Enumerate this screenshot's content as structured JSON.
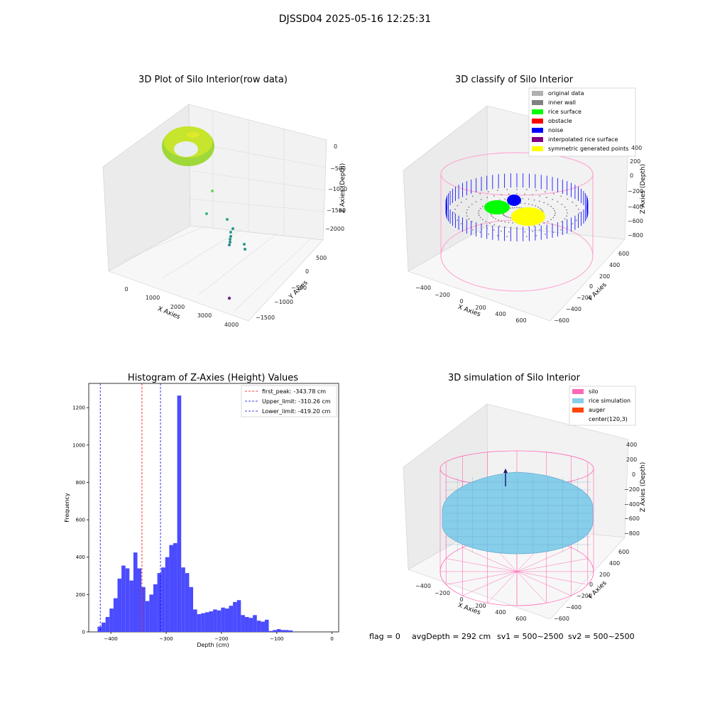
{
  "suptitle": "DJSSD04 2025-05-16 12:25:31",
  "footer": {
    "flag": "flag = 0",
    "avgDepth": "avgDepth = 292 cm",
    "sv1": "sv1 = 500~2500",
    "sv2": "sv2 = 500~2500"
  },
  "colors": {
    "silo": "#ff69b4",
    "rice_simulation": "#87ceeb",
    "auger": "#ff4500",
    "rice_surface": "#00ff00",
    "noise": "#0000ff",
    "original": "#b0b0b0",
    "inner_wall": "#808080",
    "obstacle": "#ff0000",
    "interpolated": "#800080",
    "symmetric": "#ffff00",
    "hist_bar": "#4b4bff"
  },
  "chart_data": [
    {
      "type": "scatter",
      "title": "3D Plot of Silo Interior(row data)",
      "xlabel": "X Axies",
      "ylabel": "Y Axies",
      "zlabel": "Z Axies (Depth)",
      "xticks": [
        "0",
        "1000",
        "2000",
        "3000",
        "4000"
      ],
      "yticks": [
        "500",
        "0",
        "−500",
        "−1000",
        "−1500"
      ],
      "zticks": [
        "0",
        "−500",
        "−1000",
        "−1500",
        "−2000"
      ]
    },
    {
      "type": "scatter",
      "title": "3D classify of Silo Interior",
      "xlabel": "X Axies",
      "ylabel": "Y Axies",
      "zlabel": "Z Axies (Depth)",
      "xticks": [
        "−400",
        "−200",
        "0",
        "200",
        "400",
        "600"
      ],
      "yticks": [
        "600",
        "400",
        "200",
        "0",
        "−200",
        "−400",
        "−600"
      ],
      "zticks": [
        "400",
        "200",
        "0",
        "−200",
        "−400",
        "−600",
        "−800"
      ],
      "legend": [
        "original data",
        "inner wall",
        "rice surface",
        "obstacle",
        "noise",
        "interpolated rice surface",
        "symmetric generated points"
      ],
      "legend_position": "top-right"
    },
    {
      "type": "bar",
      "title": "Histogram of Z-Axies (Height) Values",
      "xlabel": "Depth (cm)",
      "ylabel": "Frequency",
      "xlim": [
        -440,
        12
      ],
      "ylim": [
        0,
        1330
      ],
      "xticks": [
        -400,
        -300,
        -200,
        -100,
        0
      ],
      "xtick_labels": [
        "−400",
        "−300",
        "−200",
        "−100",
        "0"
      ],
      "yticks": [
        0,
        200,
        400,
        600,
        800,
        1000,
        1200
      ],
      "bin_start": -424,
      "bin_width": 7.2,
      "values": [
        28,
        50,
        80,
        125,
        180,
        285,
        355,
        340,
        275,
        425,
        340,
        240,
        165,
        200,
        255,
        315,
        345,
        400,
        465,
        475,
        1265,
        345,
        315,
        240,
        120,
        95,
        100,
        105,
        110,
        120,
        115,
        130,
        125,
        140,
        160,
        170,
        90,
        80,
        75,
        90,
        60,
        55,
        65,
        5,
        10,
        15,
        10,
        10,
        8
      ],
      "vlines": [
        {
          "label": "first_peak: -343.78 cm",
          "x": -343.78,
          "color": "#ff0000"
        },
        {
          "label": "Upper_limit: -310.26 cm",
          "x": -310.26,
          "color": "#0000ff"
        },
        {
          "label": "Lower_limit: -419.20 cm",
          "x": -419.2,
          "color": "#0000ff"
        }
      ],
      "legend_position": "top-right"
    },
    {
      "type": "scatter",
      "title": "3D simulation of Silo Interior",
      "xlabel": "X Axies",
      "ylabel": "Y Axies",
      "zlabel": "Z Axies (Depth)",
      "xticks": [
        "−400",
        "−200",
        "0",
        "200",
        "400",
        "600"
      ],
      "yticks": [
        "600",
        "400",
        "200",
        "0",
        "−200",
        "−400",
        "−600"
      ],
      "zticks": [
        "400",
        "200",
        "0",
        "−200",
        "−400",
        "−600",
        "−800"
      ],
      "legend": [
        "silo",
        "rice simulation",
        "auger",
        "center(120,3)"
      ],
      "legend_position": "top-right"
    }
  ]
}
